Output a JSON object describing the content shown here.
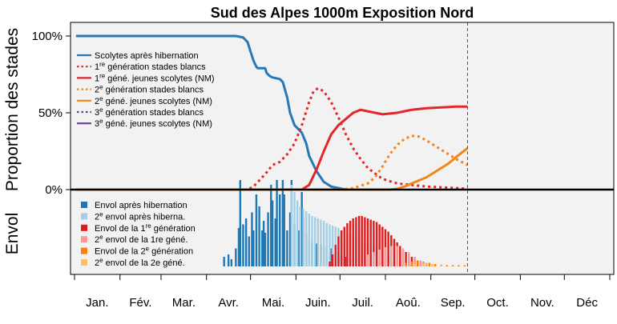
{
  "chart_data": {
    "type": "line",
    "title": "Sud des Alpes 1000m Exposition Nord",
    "ylabel_top": "Proportion des stades",
    "ylabel_bottom": "Envol",
    "yticks": [
      {
        "value": 1.0,
        "label": "100%"
      },
      {
        "value": 0.5,
        "label": "50%"
      },
      {
        "value": 0.0,
        "label": "0%"
      }
    ],
    "ylim": [
      0,
      1.0
    ],
    "xlim": [
      0,
      365
    ],
    "months": [
      {
        "label": "Jan.",
        "start": 0
      },
      {
        "label": "Fév.",
        "start": 31
      },
      {
        "label": "Mar.",
        "start": 59
      },
      {
        "label": "Avr.",
        "start": 90
      },
      {
        "label": "Mai.",
        "start": 120
      },
      {
        "label": "Juin.",
        "start": 151
      },
      {
        "label": "Juil.",
        "start": 181
      },
      {
        "label": "Aoû.",
        "start": 212
      },
      {
        "label": "Sep.",
        "start": 243
      },
      {
        "label": "Oct.",
        "start": 273
      },
      {
        "label": "Nov.",
        "start": 304
      },
      {
        "label": "Déc",
        "start": 334
      }
    ],
    "current_day": 268,
    "series": [
      {
        "name": "Scolytes après hibernation",
        "color": "#2878b5",
        "dash": false,
        "x": [
          1,
          25,
          50,
          75,
          100,
          110,
          115,
          118,
          120,
          122,
          124,
          125,
          130,
          131,
          133,
          135,
          140,
          142,
          145,
          147,
          150,
          152,
          155,
          158,
          160,
          165,
          170,
          175,
          180,
          185
        ],
        "y": [
          1.0,
          1.0,
          1.0,
          1.0,
          1.0,
          1.0,
          0.99,
          0.96,
          0.9,
          0.84,
          0.8,
          0.79,
          0.79,
          0.76,
          0.74,
          0.73,
          0.72,
          0.7,
          0.6,
          0.5,
          0.42,
          0.4,
          0.37,
          0.3,
          0.22,
          0.12,
          0.05,
          0.02,
          0.01,
          0.0
        ]
      },
      {
        "name": "1re génération stades blancs",
        "color": "#e3262b",
        "dash": true,
        "x": [
          1,
          50,
          100,
          118,
          122,
          126,
          130,
          135,
          140,
          145,
          150,
          155,
          160,
          163,
          166,
          170,
          175,
          180,
          185,
          190,
          195,
          200,
          210,
          220,
          230,
          240,
          250,
          260,
          268
        ],
        "y": [
          0,
          0,
          0,
          0,
          0.02,
          0.06,
          0.1,
          0.16,
          0.18,
          0.23,
          0.3,
          0.42,
          0.57,
          0.64,
          0.66,
          0.64,
          0.57,
          0.47,
          0.36,
          0.27,
          0.2,
          0.14,
          0.07,
          0.04,
          0.03,
          0.02,
          0.015,
          0.01,
          0.005
        ]
      },
      {
        "name": "1re géné. jeunes scolytes (NM)",
        "color": "#e3262b",
        "dash": false,
        "x": [
          1,
          100,
          150,
          155,
          160,
          165,
          170,
          175,
          180,
          185,
          190,
          195,
          200,
          205,
          210,
          220,
          230,
          240,
          250,
          260,
          268
        ],
        "y": [
          0,
          0,
          0,
          0,
          0.03,
          0.13,
          0.25,
          0.36,
          0.42,
          0.46,
          0.5,
          0.52,
          0.51,
          0.5,
          0.49,
          0.5,
          0.52,
          0.53,
          0.535,
          0.54,
          0.54
        ]
      },
      {
        "name": "2e génération stades blancs",
        "color": "#f28518",
        "dash": true,
        "x": [
          1,
          100,
          180,
          190,
          200,
          205,
          210,
          215,
          220,
          225,
          230,
          235,
          240,
          245,
          250,
          255,
          260,
          268
        ],
        "y": [
          0,
          0,
          0,
          0.01,
          0.04,
          0.08,
          0.15,
          0.23,
          0.29,
          0.33,
          0.35,
          0.345,
          0.32,
          0.29,
          0.26,
          0.23,
          0.2,
          0.16
        ]
      },
      {
        "name": "2e géné. jeunes scolytes (NM)",
        "color": "#f28518",
        "dash": false,
        "x": [
          1,
          100,
          200,
          215,
          220,
          225,
          230,
          235,
          240,
          245,
          250,
          255,
          260,
          268
        ],
        "y": [
          0,
          0,
          0,
          0,
          0.005,
          0.02,
          0.04,
          0.06,
          0.08,
          0.11,
          0.14,
          0.17,
          0.21,
          0.27
        ]
      },
      {
        "name": "3e génération stades blancs",
        "color": "#6a3d9a",
        "dash": true,
        "x": [],
        "y": []
      },
      {
        "name": "3e géné. jeunes scolytes (NM)",
        "color": "#6a3d9a",
        "dash": false,
        "x": [],
        "y": []
      }
    ],
    "legend_top": [
      {
        "pre": "Scolytes après hibernation",
        "sup": "",
        "post": "",
        "color": "#2878b5",
        "dash": false
      },
      {
        "pre": "1",
        "sup": "re",
        "post": " génération stades blancs",
        "color": "#e3262b",
        "dash": true
      },
      {
        "pre": "1",
        "sup": "re",
        "post": " géné. jeunes scolytes (NM)",
        "color": "#e3262b",
        "dash": false
      },
      {
        "pre": "2",
        "sup": "e",
        "post": " génération stades blancs",
        "color": "#f28518",
        "dash": true
      },
      {
        "pre": "2",
        "sup": "e",
        "post": " géné. jeunes scolytes (NM)",
        "color": "#f28518",
        "dash": false
      },
      {
        "pre": "3",
        "sup": "e",
        "post": " génération stades blancs",
        "color": "#6a3d9a",
        "dash": true
      },
      {
        "pre": "3",
        "sup": "e",
        "post": " géné. jeunes scolytes (NM)",
        "color": "#6a3d9a",
        "dash": false
      }
    ],
    "legend_bottom": [
      {
        "pre": "Envol après hibernation",
        "sup": "",
        "post": "",
        "color": "#1f78b4"
      },
      {
        "pre": "2",
        "sup": "e",
        "post": " envol après hiberna.",
        "color": "#a6cee3"
      },
      {
        "pre": "Envol de la 1",
        "sup": "re",
        "post": " génération",
        "color": "#e31a1c"
      },
      {
        "pre": "2",
        "sup": "e",
        "post": " envol de la 1re géné.",
        "color": "#fb9a99"
      },
      {
        "pre": "Envol de la 2",
        "sup": "e",
        "post": " génération",
        "color": "#ff7f00"
      },
      {
        "pre": "2",
        "sup": "e",
        "post": " envol de la 2e géné.",
        "color": "#fdbf6f"
      }
    ],
    "flight_series": [
      {
        "name": "Envol après hibernation",
        "color": "#1f78b4",
        "x": [
          102,
          105,
          107,
          110,
          112,
          113,
          115,
          117,
          119,
          121,
          122,
          124,
          126,
          128,
          129,
          130,
          132,
          134,
          135,
          137,
          138,
          140,
          142,
          143,
          145,
          147,
          148,
          150,
          152,
          153,
          155,
          156,
          158,
          160,
          162,
          165,
          168,
          170,
          172,
          175,
          178,
          180,
          182,
          185,
          188,
          190
        ],
        "y": [
          0.08,
          0.1,
          0.06,
          0.15,
          0.32,
          0.72,
          0.35,
          0.4,
          0.25,
          0.45,
          0.3,
          0.6,
          0.5,
          0.3,
          0.38,
          0.28,
          0.45,
          0.68,
          0.55,
          0.4,
          0.72,
          0.6,
          0.72,
          0.6,
          0.3,
          0.45,
          0.72,
          0.35,
          0.2,
          0.3,
          0.62,
          0.4,
          0.28,
          0.22,
          0.2,
          0.19,
          0.18,
          0.17,
          0.16,
          0.15,
          0.14,
          0.12,
          0.1,
          0.08,
          0.06,
          0.05
        ]
      },
      {
        "name": "2e envol après hiberna.",
        "color": "#a6cee3",
        "x": [
          148,
          150,
          152,
          154,
          156,
          158,
          160,
          162,
          164,
          166,
          168,
          170,
          172,
          174,
          176,
          178,
          180,
          182,
          184,
          186,
          188,
          190,
          192,
          194,
          196,
          198,
          200,
          202,
          204,
          206,
          208,
          210,
          212,
          214,
          216,
          218,
          220
        ],
        "y": [
          0.68,
          0.62,
          0.55,
          0.5,
          0.48,
          0.46,
          0.44,
          0.42,
          0.41,
          0.4,
          0.39,
          0.38,
          0.36,
          0.35,
          0.34,
          0.33,
          0.32,
          0.3,
          0.29,
          0.28,
          0.27,
          0.26,
          0.25,
          0.24,
          0.23,
          0.22,
          0.2,
          0.19,
          0.18,
          0.17,
          0.15,
          0.13,
          0.11,
          0.09,
          0.07,
          0.05,
          0.03
        ]
      },
      {
        "name": "Envol de la 1re génération",
        "color": "#e31a1c",
        "x": [
          174,
          176,
          178,
          180,
          182,
          184,
          186,
          188,
          190,
          192,
          194,
          196,
          198,
          200,
          202,
          204,
          206,
          208,
          210,
          212,
          214,
          216,
          218,
          220,
          222,
          224,
          226,
          228,
          230,
          232,
          234,
          236,
          238,
          240
        ],
        "y": [
          0.04,
          0.1,
          0.18,
          0.25,
          0.3,
          0.33,
          0.36,
          0.38,
          0.4,
          0.41,
          0.42,
          0.42,
          0.41,
          0.4,
          0.39,
          0.38,
          0.37,
          0.35,
          0.33,
          0.31,
          0.29,
          0.26,
          0.23,
          0.2,
          0.17,
          0.14,
          0.12,
          0.1,
          0.08,
          0.06,
          0.05,
          0.04,
          0.03,
          0.02
        ]
      },
      {
        "name": "2e envol de la 1re géné.",
        "color": "#fb9a99",
        "x": [
          200,
          204,
          208,
          212,
          216,
          220,
          224,
          228,
          232,
          236,
          240,
          244
        ],
        "y": [
          0.1,
          0.12,
          0.14,
          0.16,
          0.17,
          0.17,
          0.15,
          0.12,
          0.08,
          0.05,
          0.03,
          0.01
        ]
      },
      {
        "name": "Envol de la 2e génération",
        "color": "#ff7f00",
        "x": [
          226,
          230,
          234,
          238,
          242,
          246,
          250,
          254,
          258,
          262,
          266
        ],
        "y": [
          0.03,
          0.04,
          0.05,
          0.04,
          0.03,
          0.02,
          0.015,
          0.01,
          0.01,
          0.01,
          0.01
        ]
      },
      {
        "name": "2e envol de la 2e géné.",
        "color": "#fdbf6f",
        "x": [
          232,
          238,
          244,
          250
        ],
        "y": [
          0.02,
          0.03,
          0.02,
          0.01
        ]
      }
    ]
  }
}
